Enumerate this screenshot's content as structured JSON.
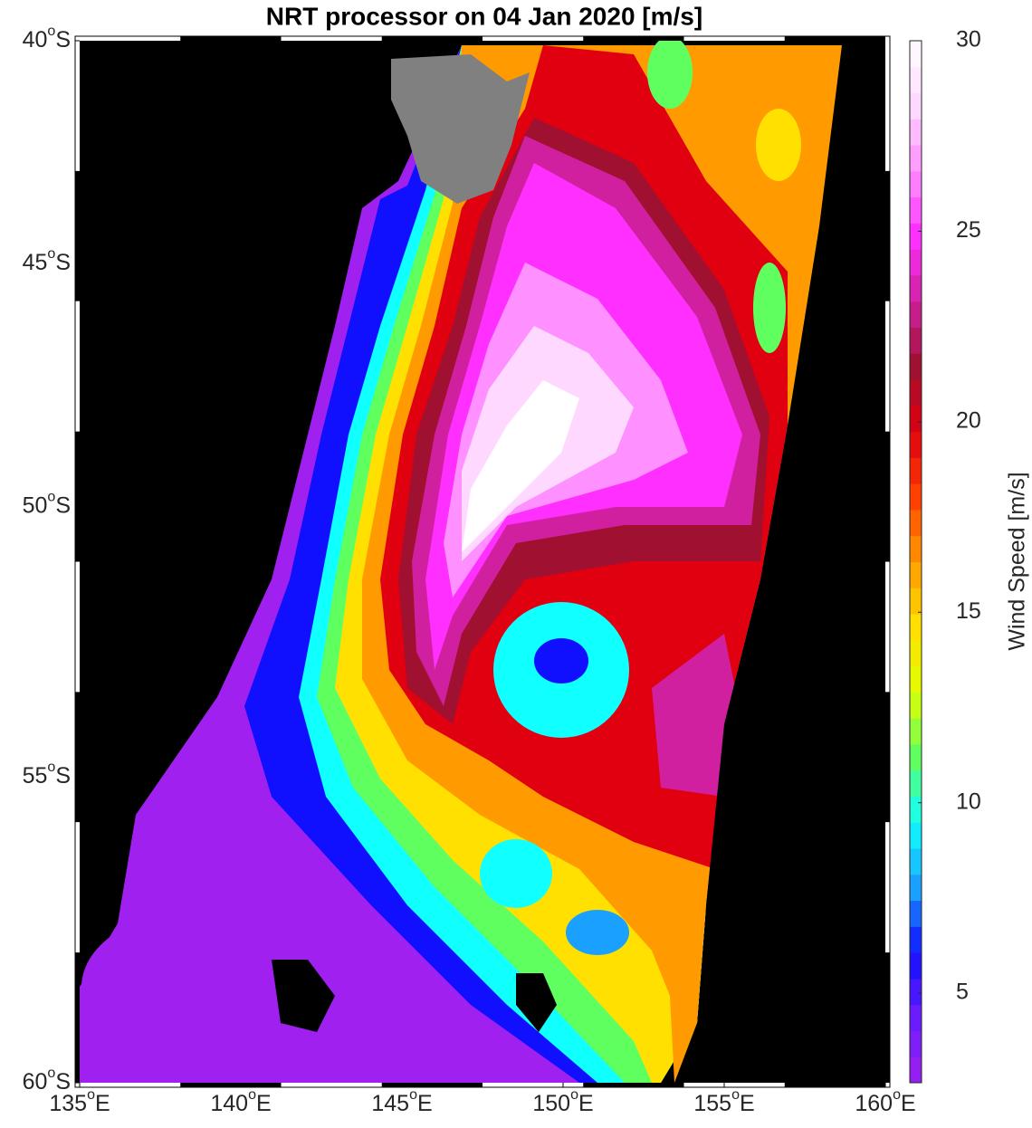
{
  "chart_data": {
    "type": "contour-map",
    "title": "NRT processor on 04 Jan 2020 [m/s]",
    "projection": "mercator",
    "degree_mark": "o",
    "x_hemisphere": "E",
    "y_hemisphere": "S",
    "xlim": [
      135,
      160
    ],
    "xticks": [
      135,
      140,
      145,
      150,
      155,
      160
    ],
    "ylim": [
      40,
      60
    ],
    "yticks": [
      40,
      45,
      50,
      55,
      60
    ],
    "colorbar": {
      "label": "Wind Speed [m/s]",
      "lim": [
        2.65,
        30
      ],
      "ticks": [
        5,
        10,
        15,
        20,
        25,
        30
      ],
      "colormap": [
        "#a020f0",
        "#6a1cff",
        "#1010ff",
        "#1aa0ff",
        "#10ffff",
        "#60ff60",
        "#e0ff00",
        "#ffe000",
        "#ff9a00",
        "#ff4000",
        "#e00010",
        "#a01030",
        "#d020a0",
        "#ff30ff",
        "#ff90ff",
        "#ffd8ff",
        "#ffffff"
      ]
    }
  }
}
